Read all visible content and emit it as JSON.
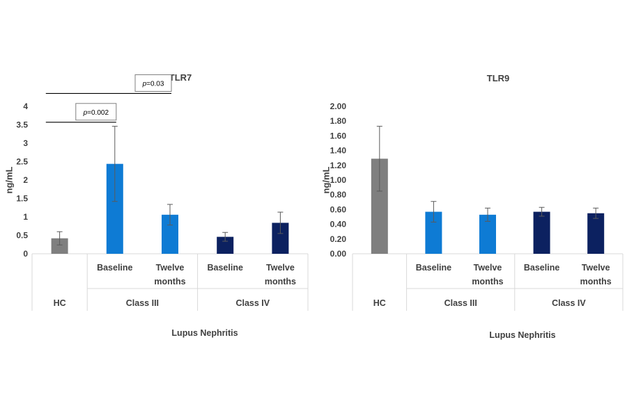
{
  "chart_data": [
    {
      "type": "bar",
      "title": "TLR7",
      "ylabel": "ng/mL",
      "xlabel": "Lupus Nephritis",
      "ylim": [
        0,
        4
      ],
      "yticks": [
        "0",
        "0.5",
        "1",
        "1.5",
        "2",
        "2.5",
        "3",
        "3.5",
        "4"
      ],
      "categories": [
        "HC",
        "Baseline",
        "Twelve months",
        "Baseline",
        "Twelve months"
      ],
      "category_lines": [
        [
          "HC"
        ],
        [
          "Baseline"
        ],
        [
          "Twelve",
          "months"
        ],
        [
          "Baseline"
        ],
        [
          "Twelve",
          "months"
        ]
      ],
      "groups": [
        {
          "label": "HC",
          "span": 1
        },
        {
          "label": "Class III",
          "span": 2
        },
        {
          "label": "Class IV",
          "span": 2
        }
      ],
      "values": [
        0.42,
        2.44,
        1.06,
        0.46,
        0.84
      ],
      "errors": [
        0.18,
        1.02,
        0.28,
        0.12,
        0.29
      ],
      "colors": [
        "#7f7f7f",
        "#0e7bd4",
        "#0e7bd4",
        "#0c2160",
        "#0c2160"
      ],
      "annotations": [
        {
          "text": "p=0.002",
          "from": 0,
          "to": 1,
          "level": 3.57
        },
        {
          "text": "p=0.03",
          "from": 0,
          "to": 2,
          "level": 4.35
        }
      ]
    },
    {
      "type": "bar",
      "title": "TLR9",
      "ylabel": "ng/mL",
      "xlabel": "Lupus Nephritis",
      "ylim": [
        0,
        2
      ],
      "yticks": [
        "0.00",
        "0.20",
        "0.40",
        "0.60",
        "0.80",
        "1.00",
        "1.20",
        "1.40",
        "1.60",
        "1.80",
        "2.00"
      ],
      "categories": [
        "HC",
        "Baseline",
        "Twelve months",
        "Baseline",
        "Twelve months"
      ],
      "category_lines": [
        [
          "HC"
        ],
        [
          "Baseline"
        ],
        [
          "Twelve",
          "months"
        ],
        [
          "Baseline"
        ],
        [
          "Twelve",
          "months"
        ]
      ],
      "groups": [
        {
          "label": "HC",
          "span": 1
        },
        {
          "label": "Class III",
          "span": 2
        },
        {
          "label": "Class IV",
          "span": 2
        }
      ],
      "values": [
        1.29,
        0.57,
        0.53,
        0.57,
        0.55
      ],
      "errors": [
        0.44,
        0.14,
        0.09,
        0.06,
        0.07
      ],
      "colors": [
        "#7f7f7f",
        "#0e7bd4",
        "#0e7bd4",
        "#0c2160",
        "#0c2160"
      ],
      "annotations": []
    }
  ]
}
